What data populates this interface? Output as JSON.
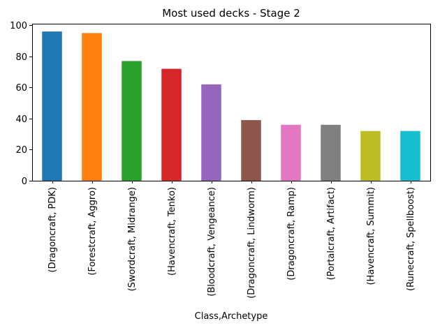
{
  "chart_data": {
    "type": "bar",
    "title": "Most used decks - Stage 2",
    "xlabel": "Class,Archetype",
    "ylabel": "",
    "ylim": [
      0,
      101
    ],
    "yticks": [
      0,
      20,
      40,
      60,
      80,
      100
    ],
    "grid": false,
    "categories": [
      "(Dragoncraft, PDK)",
      "(Forestcraft, Aggro)",
      "(Swordcraft, Midrange)",
      "(Havencraft, Tenko)",
      "(Bloodcraft, Vengeance)",
      "(Dragoncraft, Lindworm)",
      "(Dragoncraft, Ramp)",
      "(Portalcraft, Artifact)",
      "(Havencraft, Summit)",
      "(Runecraft, Spellboost)"
    ],
    "values": [
      96,
      95,
      77,
      72,
      62,
      39,
      36,
      36,
      32,
      32
    ],
    "colors": [
      "#1f77b4",
      "#ff7f0e",
      "#2ca02c",
      "#d62728",
      "#9467bd",
      "#8c564b",
      "#e377c2",
      "#7f7f7f",
      "#bcbd22",
      "#17becf"
    ]
  }
}
